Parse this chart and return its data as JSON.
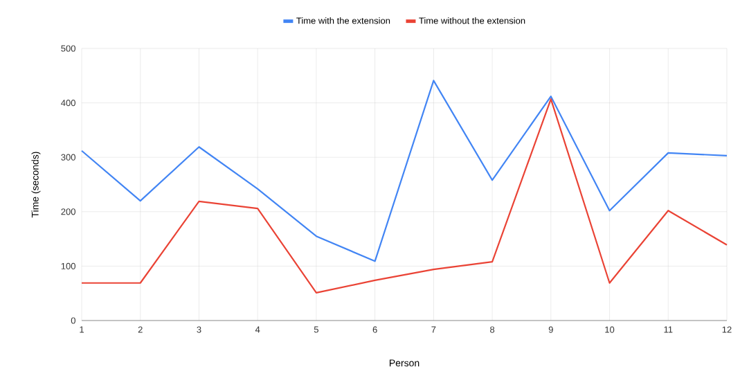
{
  "chart_data": {
    "type": "line",
    "xlabel": "Person",
    "ylabel": "Time (seconds)",
    "x": [
      1,
      2,
      3,
      4,
      5,
      6,
      7,
      8,
      9,
      10,
      11,
      12
    ],
    "series": [
      {
        "name": "Time with the extension",
        "color": "#4285f4",
        "values": [
          312,
          220,
          319,
          242,
          155,
          109,
          441,
          258,
          412,
          202,
          308,
          303
        ]
      },
      {
        "name": "Time without the extension",
        "color": "#ea4335",
        "values": [
          69,
          69,
          219,
          206,
          51,
          74,
          94,
          108,
          407,
          69,
          202,
          139
        ]
      }
    ],
    "xlim": [
      1,
      12
    ],
    "xticks": [
      1,
      2,
      3,
      4,
      5,
      6,
      7,
      8,
      9,
      10,
      11,
      12
    ],
    "ylim": [
      0,
      500
    ],
    "yticks": [
      0,
      100,
      200,
      300,
      400,
      500
    ],
    "grid": true,
    "legend": "top",
    "marker": "none",
    "line_style": "solid"
  }
}
